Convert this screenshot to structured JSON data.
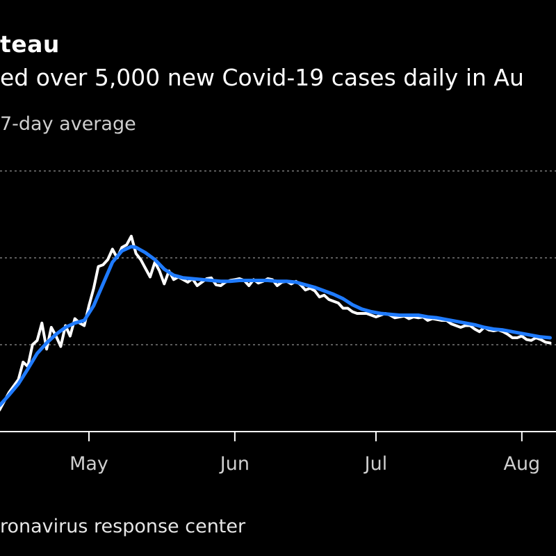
{
  "header": {
    "title": "teau",
    "subtitle": "ed over 5,000 new Covid-19 cases daily in Au",
    "legend_text": "7-day average"
  },
  "footer": {
    "source": "ronavirus response center"
  },
  "colors": {
    "background": "#000000",
    "daily_line": "#ffffff",
    "average_line": "#1f7bff",
    "gridline": "#7a7a7a",
    "axis": "#ffffff"
  },
  "chart_data": {
    "type": "line",
    "title": "",
    "xlabel": "",
    "ylabel": "",
    "grid": true,
    "gridlines_count": 3,
    "x_ticks": [
      {
        "label": "May",
        "day": 30
      },
      {
        "label": "Jun",
        "day": 61
      },
      {
        "label": "Jul",
        "day": 91
      },
      {
        "label": "Aug",
        "day": 122
      }
    ],
    "x_range_days": [
      11,
      128
    ],
    "y_range": [
      0,
      3
    ],
    "series": [
      {
        "key": "daily",
        "color": "#ffffff",
        "points": [
          [
            11,
            0.25
          ],
          [
            13,
            0.45
          ],
          [
            15,
            0.6
          ],
          [
            16,
            0.8
          ],
          [
            17,
            0.75
          ],
          [
            18,
            1.0
          ],
          [
            19,
            1.05
          ],
          [
            20,
            1.25
          ],
          [
            21,
            0.95
          ],
          [
            22,
            1.2
          ],
          [
            23,
            1.1
          ],
          [
            24,
            0.98
          ],
          [
            25,
            1.22
          ],
          [
            26,
            1.1
          ],
          [
            27,
            1.3
          ],
          [
            28,
            1.25
          ],
          [
            29,
            1.22
          ],
          [
            30,
            1.45
          ],
          [
            31,
            1.65
          ],
          [
            32,
            1.9
          ],
          [
            33,
            1.92
          ],
          [
            34,
            1.98
          ],
          [
            35,
            2.1
          ],
          [
            36,
            2.0
          ],
          [
            37,
            2.12
          ],
          [
            38,
            2.15
          ],
          [
            39,
            2.25
          ],
          [
            40,
            2.05
          ],
          [
            41,
            1.98
          ],
          [
            42,
            1.88
          ],
          [
            43,
            1.78
          ],
          [
            44,
            1.95
          ],
          [
            45,
            1.85
          ],
          [
            46,
            1.7
          ],
          [
            47,
            1.85
          ],
          [
            48,
            1.75
          ],
          [
            49,
            1.78
          ],
          [
            50,
            1.75
          ],
          [
            51,
            1.72
          ],
          [
            52,
            1.76
          ],
          [
            53,
            1.68
          ],
          [
            54,
            1.72
          ],
          [
            55,
            1.76
          ],
          [
            56,
            1.77
          ],
          [
            57,
            1.69
          ],
          [
            58,
            1.68
          ],
          [
            59,
            1.72
          ],
          [
            60,
            1.74
          ],
          [
            61,
            1.75
          ],
          [
            62,
            1.76
          ],
          [
            63,
            1.74
          ],
          [
            64,
            1.68
          ],
          [
            65,
            1.75
          ],
          [
            66,
            1.71
          ],
          [
            67,
            1.73
          ],
          [
            68,
            1.76
          ],
          [
            69,
            1.75
          ],
          [
            70,
            1.68
          ],
          [
            71,
            1.72
          ],
          [
            72,
            1.73
          ],
          [
            73,
            1.7
          ],
          [
            74,
            1.73
          ],
          [
            75,
            1.69
          ],
          [
            76,
            1.63
          ],
          [
            77,
            1.65
          ],
          [
            78,
            1.62
          ],
          [
            79,
            1.55
          ],
          [
            80,
            1.57
          ],
          [
            81,
            1.52
          ],
          [
            82,
            1.5
          ],
          [
            83,
            1.48
          ],
          [
            84,
            1.42
          ],
          [
            85,
            1.42
          ],
          [
            86,
            1.38
          ],
          [
            87,
            1.36
          ],
          [
            88,
            1.36
          ],
          [
            89,
            1.36
          ],
          [
            90,
            1.34
          ],
          [
            91,
            1.32
          ],
          [
            92,
            1.34
          ],
          [
            93,
            1.36
          ],
          [
            94,
            1.34
          ],
          [
            95,
            1.31
          ],
          [
            96,
            1.32
          ],
          [
            97,
            1.33
          ],
          [
            98,
            1.3
          ],
          [
            99,
            1.32
          ],
          [
            100,
            1.31
          ],
          [
            101,
            1.32
          ],
          [
            102,
            1.28
          ],
          [
            103,
            1.3
          ],
          [
            104,
            1.29
          ],
          [
            105,
            1.28
          ],
          [
            106,
            1.28
          ],
          [
            107,
            1.24
          ],
          [
            108,
            1.22
          ],
          [
            109,
            1.2
          ],
          [
            110,
            1.22
          ],
          [
            111,
            1.22
          ],
          [
            112,
            1.18
          ],
          [
            113,
            1.15
          ],
          [
            114,
            1.2
          ],
          [
            115,
            1.17
          ],
          [
            116,
            1.16
          ],
          [
            117,
            1.17
          ],
          [
            118,
            1.15
          ],
          [
            119,
            1.12
          ],
          [
            120,
            1.08
          ],
          [
            121,
            1.08
          ],
          [
            122,
            1.1
          ],
          [
            123,
            1.06
          ],
          [
            124,
            1.05
          ],
          [
            125,
            1.08
          ],
          [
            126,
            1.06
          ],
          [
            127,
            1.03
          ],
          [
            128,
            1.02
          ]
        ]
      },
      {
        "key": "average",
        "color": "#1f7bff",
        "points": [
          [
            11,
            0.3
          ],
          [
            13,
            0.42
          ],
          [
            15,
            0.55
          ],
          [
            17,
            0.72
          ],
          [
            19,
            0.9
          ],
          [
            21,
            1.02
          ],
          [
            23,
            1.12
          ],
          [
            25,
            1.2
          ],
          [
            27,
            1.25
          ],
          [
            29,
            1.28
          ],
          [
            31,
            1.45
          ],
          [
            33,
            1.7
          ],
          [
            35,
            1.95
          ],
          [
            37,
            2.08
          ],
          [
            39,
            2.13
          ],
          [
            40,
            2.12
          ],
          [
            42,
            2.06
          ],
          [
            44,
            1.98
          ],
          [
            46,
            1.87
          ],
          [
            48,
            1.8
          ],
          [
            50,
            1.77
          ],
          [
            52,
            1.76
          ],
          [
            54,
            1.75
          ],
          [
            56,
            1.74
          ],
          [
            58,
            1.73
          ],
          [
            60,
            1.73
          ],
          [
            62,
            1.74
          ],
          [
            64,
            1.74
          ],
          [
            66,
            1.74
          ],
          [
            68,
            1.74
          ],
          [
            70,
            1.73
          ],
          [
            72,
            1.73
          ],
          [
            74,
            1.72
          ],
          [
            76,
            1.69
          ],
          [
            78,
            1.66
          ],
          [
            80,
            1.62
          ],
          [
            82,
            1.58
          ],
          [
            84,
            1.53
          ],
          [
            86,
            1.46
          ],
          [
            88,
            1.41
          ],
          [
            90,
            1.38
          ],
          [
            92,
            1.36
          ],
          [
            94,
            1.35
          ],
          [
            96,
            1.34
          ],
          [
            98,
            1.34
          ],
          [
            100,
            1.34
          ],
          [
            102,
            1.32
          ],
          [
            104,
            1.31
          ],
          [
            106,
            1.29
          ],
          [
            108,
            1.27
          ],
          [
            110,
            1.25
          ],
          [
            112,
            1.23
          ],
          [
            114,
            1.2
          ],
          [
            116,
            1.18
          ],
          [
            118,
            1.17
          ],
          [
            120,
            1.15
          ],
          [
            122,
            1.13
          ],
          [
            124,
            1.11
          ],
          [
            126,
            1.09
          ],
          [
            128,
            1.08
          ]
        ]
      }
    ]
  }
}
